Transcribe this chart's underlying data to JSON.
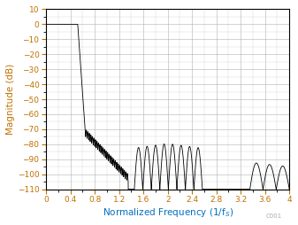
{
  "title": "",
  "xlabel": "Normalized Frequency (1/f$_S$)",
  "ylabel": "Magnitude (dB)",
  "xlim": [
    0,
    4
  ],
  "ylim": [
    -110,
    10
  ],
  "xticks": [
    0,
    0.4,
    0.8,
    1.2,
    1.6,
    2.0,
    2.4,
    2.8,
    3.2,
    3.6,
    4.0
  ],
  "xtick_labels": [
    "0",
    "0.4",
    "0.8",
    "1.2",
    "1.6",
    "2",
    "2.4",
    "2.8",
    "3.2",
    "3.6",
    "4"
  ],
  "yticks": [
    10,
    0,
    -10,
    -20,
    -30,
    -40,
    -50,
    -60,
    -70,
    -80,
    -90,
    -100,
    -110
  ],
  "line_color": "#000000",
  "background_color": "#ffffff",
  "grid_color": "#b0b0b0",
  "label_color_x": "#0070c0",
  "label_color_y": "#c07000",
  "tick_label_color": "#c07000",
  "watermark": "C001",
  "figsize": [
    3.37,
    2.54
  ],
  "dpi": 100
}
